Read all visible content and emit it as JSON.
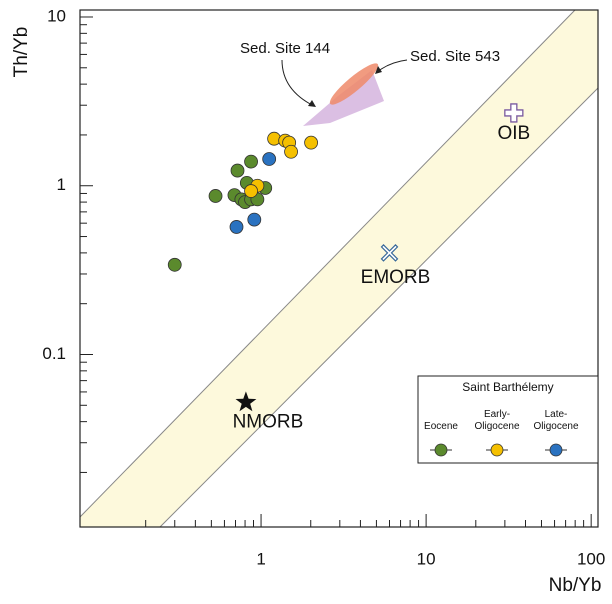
{
  "chart_data": {
    "type": "scatter",
    "xlabel": "Nb/Yb",
    "ylabel": "Th/Yb",
    "xscale": "log",
    "yscale": "log",
    "xlim": [
      0.08,
      110
    ],
    "ylim": [
      0.0095,
      11
    ],
    "xticks": [
      1,
      10,
      100
    ],
    "yticks": [
      0.1,
      1,
      10
    ],
    "xminor_ticks": [
      0.2,
      0.3,
      0.4,
      0.5,
      0.6,
      0.7,
      0.8,
      0.9,
      2,
      3,
      4,
      5,
      6,
      7,
      8,
      9,
      20,
      30,
      40,
      50,
      60,
      70,
      80,
      90
    ],
    "yminor_ticks": [
      0.02,
      0.03,
      0.04,
      0.05,
      0.06,
      0.07,
      0.08,
      0.09,
      0.2,
      0.3,
      0.4,
      0.5,
      0.6,
      0.7,
      0.8,
      0.9,
      2,
      3,
      4,
      5,
      6,
      7,
      8,
      9
    ],
    "legend_title": "Saint Barthélemy",
    "legend_position": "lower right",
    "series": [
      {
        "name": "Eocene",
        "color": "#5b8a2d",
        "x": [
          0.3,
          0.53,
          0.69,
          0.72,
          0.87,
          0.82,
          0.76,
          0.8,
          0.87,
          0.95,
          1.06
        ],
        "values": [
          0.34,
          0.87,
          0.88,
          1.23,
          1.39,
          1.04,
          0.83,
          0.8,
          0.83,
          0.83,
          0.97
        ]
      },
      {
        "name": "Early-Oligocene",
        "color": "#f5c000",
        "x": [
          1.2,
          1.4,
          1.48,
          1.52,
          2.01,
          0.95,
          0.87
        ],
        "values": [
          1.9,
          1.85,
          1.8,
          1.59,
          1.8,
          1.0,
          0.93
        ]
      },
      {
        "name": "Late-Oligocene",
        "color": "#2a72c0",
        "x": [
          1.12,
          0.91,
          0.71
        ],
        "values": [
          1.44,
          0.63,
          0.57
        ]
      }
    ],
    "reference_points": [
      {
        "name": "OIB",
        "x": 34,
        "y": 2.7,
        "marker": "plus"
      },
      {
        "name": "EMORB",
        "x": 6.0,
        "y": 0.4,
        "marker": "x"
      },
      {
        "name": "NMORB",
        "x": 0.81,
        "y": 0.052,
        "marker": "star"
      }
    ],
    "annotations": [
      "Sed. Site 144",
      "Sed. Site 543"
    ]
  }
}
